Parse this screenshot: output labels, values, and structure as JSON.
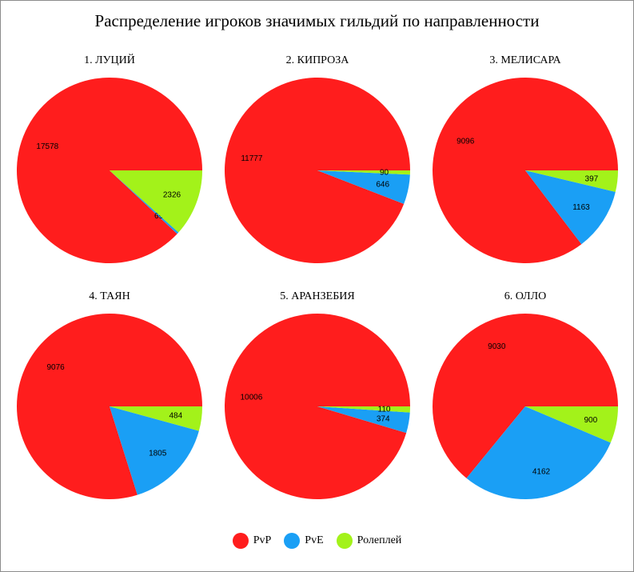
{
  "title": "Распределение игроков значимых гильдий по направленности",
  "colors": {
    "PvP": "#ff1d1d",
    "PvE": "#1a9ff5",
    "Ролеплей": "#a3f21a"
  },
  "legend": [
    {
      "name": "PvP",
      "color": "#ff1d1d"
    },
    {
      "name": "PvE",
      "color": "#1a9ff5"
    },
    {
      "name": "Ролеплей",
      "color": "#a3f21a"
    }
  ],
  "chart_data": [
    {
      "type": "pie",
      "title": "1. ЛУЦИЙ",
      "labels": [
        "PvP",
        "PvE",
        "Ролеплей"
      ],
      "values": [
        17578,
        69,
        2326
      ]
    },
    {
      "type": "pie",
      "title": "2. КИПРОЗА",
      "labels": [
        "PvP",
        "PvE",
        "Ролеплей"
      ],
      "values": [
        11777,
        646,
        90
      ]
    },
    {
      "type": "pie",
      "title": "3. МЕЛИСАРА",
      "labels": [
        "PvP",
        "PvE",
        "Ролеплей"
      ],
      "values": [
        9096,
        1163,
        397
      ]
    },
    {
      "type": "pie",
      "title": "4. ТАЯН",
      "labels": [
        "PvP",
        "PvE",
        "Ролеплей"
      ],
      "values": [
        9076,
        1805,
        484
      ]
    },
    {
      "type": "pie",
      "title": "5. АРАНЗЕБИЯ",
      "labels": [
        "PvP",
        "PvE",
        "Ролеплей"
      ],
      "values": [
        10006,
        374,
        110
      ]
    },
    {
      "type": "pie",
      "title": "6. ОЛЛО",
      "labels": [
        "PvP",
        "PvE",
        "Ролеплей"
      ],
      "values": [
        9030,
        4162,
        900
      ]
    }
  ]
}
